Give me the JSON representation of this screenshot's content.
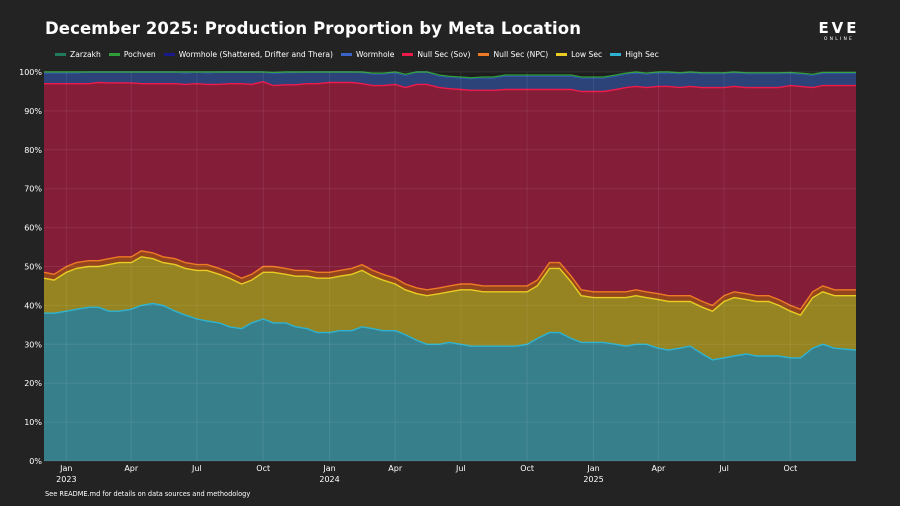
{
  "title": "December 2025: Production Proportion by Meta Location",
  "logo": {
    "main": "EVE",
    "sub": "ONLINE"
  },
  "footnote": "See README.md for details on data sources and methodology",
  "chart_data": {
    "type": "area",
    "stacked": true,
    "percent": true,
    "title": "December 2025: Production Proportion by Meta Location",
    "xlabel": "",
    "ylabel": "",
    "ylim": [
      0,
      100
    ],
    "grid": true,
    "legend_position": "top-left",
    "y_ticks": [
      0,
      10,
      20,
      30,
      40,
      50,
      60,
      70,
      80,
      90,
      100
    ],
    "y_tick_labels": [
      "0%",
      "10%",
      "20%",
      "30%",
      "40%",
      "50%",
      "60%",
      "70%",
      "80%",
      "90%",
      "100%"
    ],
    "x_range": [
      "2022-12-01",
      "2025-12-31"
    ],
    "x_ticks": [
      {
        "date": "2023-01-01",
        "label": "Jan",
        "year": "2023"
      },
      {
        "date": "2023-04-01",
        "label": "Apr",
        "year": ""
      },
      {
        "date": "2023-07-01",
        "label": "Jul",
        "year": ""
      },
      {
        "date": "2023-10-01",
        "label": "Oct",
        "year": ""
      },
      {
        "date": "2024-01-01",
        "label": "Jan",
        "year": "2024"
      },
      {
        "date": "2024-04-01",
        "label": "Apr",
        "year": ""
      },
      {
        "date": "2024-07-01",
        "label": "Jul",
        "year": ""
      },
      {
        "date": "2024-10-01",
        "label": "Oct",
        "year": ""
      },
      {
        "date": "2025-01-01",
        "label": "Jan",
        "year": "2025"
      },
      {
        "date": "2025-04-01",
        "label": "Apr",
        "year": ""
      },
      {
        "date": "2025-07-01",
        "label": "Jul",
        "year": ""
      },
      {
        "date": "2025-10-01",
        "label": "Oct",
        "year": ""
      }
    ],
    "x": [
      "2022-12-01",
      "2022-12-15",
      "2023-01-01",
      "2023-01-15",
      "2023-02-01",
      "2023-02-15",
      "2023-03-01",
      "2023-03-15",
      "2023-04-01",
      "2023-04-15",
      "2023-05-01",
      "2023-05-15",
      "2023-06-01",
      "2023-06-15",
      "2023-07-01",
      "2023-07-15",
      "2023-08-01",
      "2023-08-15",
      "2023-09-01",
      "2023-09-15",
      "2023-10-01",
      "2023-10-15",
      "2023-11-01",
      "2023-11-15",
      "2023-12-01",
      "2023-12-15",
      "2024-01-01",
      "2024-01-15",
      "2024-02-01",
      "2024-02-15",
      "2024-03-01",
      "2024-03-15",
      "2024-04-01",
      "2024-04-15",
      "2024-05-01",
      "2024-05-15",
      "2024-06-01",
      "2024-06-15",
      "2024-07-01",
      "2024-07-15",
      "2024-08-01",
      "2024-08-15",
      "2024-09-01",
      "2024-09-15",
      "2024-10-01",
      "2024-10-15",
      "2024-11-01",
      "2024-11-15",
      "2024-12-01",
      "2024-12-15",
      "2025-01-01",
      "2025-01-15",
      "2025-02-01",
      "2025-02-15",
      "2025-03-01",
      "2025-03-15",
      "2025-04-01",
      "2025-04-15",
      "2025-05-01",
      "2025-05-15",
      "2025-06-01",
      "2025-06-15",
      "2025-07-01",
      "2025-07-15",
      "2025-08-01",
      "2025-08-15",
      "2025-09-01",
      "2025-09-15",
      "2025-10-01",
      "2025-10-15",
      "2025-11-01",
      "2025-11-15",
      "2025-12-01",
      "2025-12-31"
    ],
    "series": [
      {
        "name": "High Sec",
        "color": "#2db3d1",
        "fill": "#387f8c",
        "values": [
          38,
          38,
          38.5,
          39,
          39.5,
          39.5,
          38.5,
          38.5,
          39,
          40,
          40.5,
          40,
          38.5,
          37.5,
          36.5,
          36,
          35.5,
          34.5,
          34,
          35.5,
          36.5,
          35.5,
          35.5,
          34.5,
          34,
          33,
          33,
          33.5,
          33.5,
          34.5,
          34,
          33.5,
          33.5,
          32.5,
          31,
          30,
          30,
          30.5,
          30,
          29.5,
          29.5,
          29.5,
          29.5,
          29.5,
          30,
          31.5,
          33,
          33,
          31.5,
          30.5,
          30.5,
          30.5,
          30,
          29.5,
          30,
          30,
          29,
          28.5,
          29,
          29.5,
          27.5,
          26,
          26.5,
          27,
          27.5,
          27,
          27,
          27,
          26.5,
          26.5,
          29,
          30,
          29,
          28.5
        ]
      },
      {
        "name": "Low Sec",
        "color": "#e8cc23",
        "fill": "#958421",
        "values": [
          9,
          8.5,
          10,
          10.5,
          10.5,
          10.5,
          12,
          12.5,
          12,
          12.5,
          11.5,
          11,
          12,
          12,
          12.5,
          13,
          12.5,
          12.5,
          11.5,
          11,
          12,
          13,
          12.5,
          13,
          13.5,
          14,
          14,
          14,
          14.5,
          14.5,
          13.5,
          13,
          12,
          11.5,
          12,
          12.5,
          13,
          13,
          14,
          14.5,
          14,
          14,
          14,
          14,
          13.5,
          13.5,
          16.5,
          16.5,
          14.5,
          12,
          11.5,
          11.5,
          12,
          12.5,
          12.5,
          12,
          12.5,
          12.5,
          12,
          11.5,
          12,
          12.5,
          14.5,
          15,
          14,
          14,
          14,
          13,
          12,
          11,
          13,
          13.5,
          13.5,
          14
        ]
      },
      {
        "name": "Null Sec (NPC)",
        "color": "#ef7a24",
        "fill": "#95451d",
        "values": [
          1.5,
          1.5,
          1.5,
          1.5,
          1.5,
          1.5,
          1.5,
          1.5,
          1.5,
          1.5,
          1.5,
          1.5,
          1.5,
          1.5,
          1.5,
          1.5,
          1.5,
          1.5,
          1.5,
          1.5,
          1.5,
          1.5,
          1.5,
          1.5,
          1.5,
          1.5,
          1.5,
          1.5,
          1.5,
          1.5,
          1.5,
          1.5,
          1.5,
          1.5,
          1.5,
          1.5,
          1.5,
          1.5,
          1.5,
          1.5,
          1.5,
          1.5,
          1.5,
          1.5,
          1.5,
          1.5,
          1.5,
          1.5,
          1.5,
          1.5,
          1.5,
          1.5,
          1.5,
          1.5,
          1.5,
          1.5,
          1.5,
          1.5,
          1.5,
          1.5,
          1.5,
          1.5,
          1.5,
          1.5,
          1.5,
          1.5,
          1.5,
          1.5,
          1.5,
          1.5,
          1.5,
          1.5,
          1.5,
          1.5
        ]
      },
      {
        "name": "Null Sec (Sov)",
        "color": "#ee1a4a",
        "fill": "#841d38",
        "values": [
          48.5,
          49,
          47,
          46,
          45.5,
          45.8,
          45.2,
          44.7,
          44.7,
          43,
          43.5,
          44.5,
          45,
          45.8,
          46.5,
          46.3,
          47.3,
          48.5,
          50,
          48.8,
          47.5,
          46.5,
          47.2,
          47.7,
          48,
          48.5,
          48.8,
          48.3,
          47.8,
          46.5,
          47.5,
          48.5,
          49.8,
          50.5,
          52.3,
          52.8,
          51.5,
          50.7,
          50,
          49.8,
          50.3,
          50.3,
          50.5,
          50.5,
          50.5,
          49,
          44.5,
          44.5,
          48,
          51,
          51.5,
          51.5,
          52,
          52.5,
          52.3,
          52.5,
          53.3,
          53.8,
          53.5,
          53.8,
          55,
          56,
          53.5,
          52.8,
          53,
          53.5,
          53.5,
          54.5,
          56.5,
          57.3,
          52.5,
          51.5,
          52.5,
          52.5
        ]
      },
      {
        "name": "Wormhole",
        "color": "#3a63c9",
        "fill": "#2c4379",
        "values": [
          2.8,
          2.8,
          2.8,
          2.8,
          3,
          3,
          3,
          3,
          3,
          3,
          3,
          3,
          3,
          3,
          3,
          3,
          3.2,
          3.2,
          3.2,
          3.2,
          3.2,
          3.2,
          3.2,
          3.2,
          3,
          3,
          2.9,
          2.9,
          2.9,
          2.9,
          3,
          3,
          3,
          3.2,
          3.2,
          3.2,
          3,
          3,
          3,
          3,
          3.2,
          3.2,
          3.5,
          3.5,
          3.5,
          3.5,
          3.5,
          3.5,
          3.5,
          3.5,
          3.5,
          3.5,
          3.5,
          3.5,
          3.5,
          3.5,
          3.5,
          3.5,
          3.6,
          3.6,
          3.6,
          3.6,
          3.6,
          3.6,
          3.6,
          3.6,
          3.6,
          3.6,
          3.2,
          3.2,
          3.2,
          3.2,
          3.2,
          3.2
        ]
      },
      {
        "name": "Wormhole (Shattered, Drifter and Thera)",
        "color": "#1a1a8a",
        "fill": "#1a1a5a",
        "values": [
          0.15,
          0.15,
          0.15,
          0.15,
          0.15,
          0.15,
          0.15,
          0.15,
          0.15,
          0.15,
          0.15,
          0.15,
          0.15,
          0.15,
          0.15,
          0.15,
          0.15,
          0.15,
          0.15,
          0.15,
          0.15,
          0.15,
          0.15,
          0.15,
          0.15,
          0.15,
          0.15,
          0.15,
          0.15,
          0.15,
          0.15,
          0.15,
          0.15,
          0.15,
          0.15,
          0.15,
          0.15,
          0.15,
          0.15,
          0.15,
          0.15,
          0.15,
          0.15,
          0.15,
          0.15,
          0.15,
          0.15,
          0.15,
          0.15,
          0.15,
          0.15,
          0.15,
          0.15,
          0.15,
          0.15,
          0.15,
          0.15,
          0.15,
          0.15,
          0.15,
          0.15,
          0.15,
          0.15,
          0.15,
          0.15,
          0.15,
          0.15,
          0.15,
          0.15,
          0.15,
          0.15,
          0.15,
          0.15,
          0.15
        ]
      },
      {
        "name": "Pochven",
        "color": "#2f9e3a",
        "fill": "#21662a",
        "values": [
          0.05,
          0.05,
          0.05,
          0.05,
          0.05,
          0.05,
          0.05,
          0.05,
          0.05,
          0.05,
          0.05,
          0.05,
          0.05,
          0.05,
          0.05,
          0.05,
          0.05,
          0.05,
          0.05,
          0.05,
          0.05,
          0.05,
          0.05,
          0.05,
          0.05,
          0.05,
          0.3,
          0.05,
          0.05,
          0.05,
          0.05,
          0.05,
          0.05,
          0.05,
          0.05,
          0.05,
          0.05,
          0.05,
          0.05,
          0.05,
          0.05,
          0.05,
          0.05,
          0.05,
          0.05,
          0.05,
          0.05,
          0.05,
          0.05,
          0.05,
          0.05,
          0.05,
          0.05,
          0.05,
          0.05,
          0.05,
          0.05,
          0.05,
          0.05,
          0.05,
          0.05,
          0.05,
          0.05,
          0.05,
          0.05,
          0.05,
          0.05,
          0.05,
          0.05,
          0.05,
          0.05,
          0.05,
          0.05,
          0.05
        ]
      },
      {
        "name": "Zarzakh",
        "color": "#1f7a5c",
        "fill": "#1a5a45",
        "values": [
          0,
          0,
          0,
          0,
          0,
          0,
          0,
          0,
          0,
          0,
          0,
          0,
          0,
          0,
          0,
          0,
          0,
          0,
          0,
          0,
          0,
          0,
          0,
          0,
          0,
          0,
          0,
          0,
          0,
          0,
          0,
          0,
          0,
          0,
          0,
          0,
          0,
          0,
          0,
          0,
          0,
          0,
          0,
          0,
          0,
          0,
          0,
          0,
          0,
          0,
          0,
          0,
          0,
          0,
          0,
          0,
          0,
          0,
          0,
          0,
          0,
          0,
          0,
          0,
          0,
          0,
          0,
          0,
          0,
          0,
          0,
          0,
          0,
          0
        ]
      }
    ],
    "legend_order": [
      "Zarzakh",
      "Pochven",
      "Wormhole (Shattered, Drifter and Thera)",
      "Wormhole",
      "Null Sec (Sov)",
      "Null Sec (NPC)",
      "Low Sec",
      "High Sec"
    ]
  }
}
